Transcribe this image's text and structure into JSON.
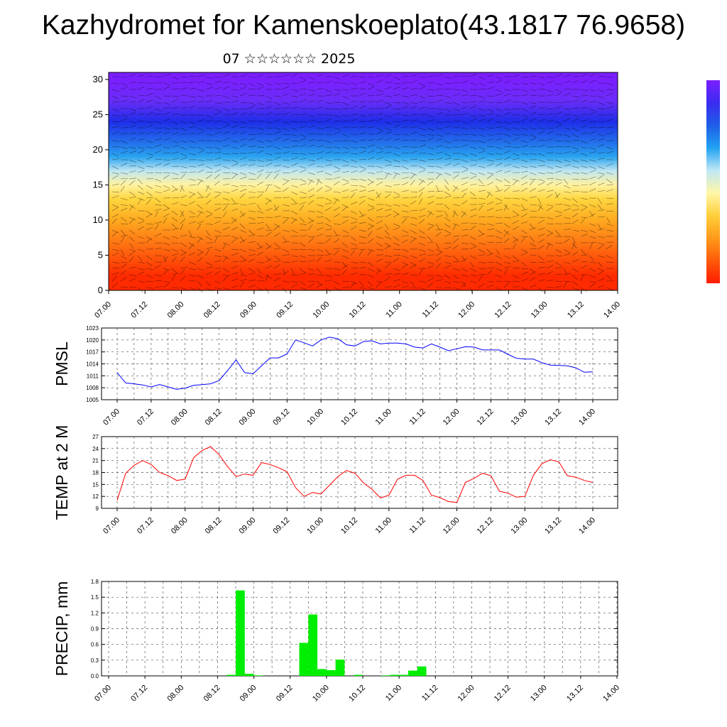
{
  "title": "Kazhydromet for Kamenskoeplato(43.1817 76.9658)",
  "subtitle": "07 ☆☆☆☆☆☆ 2025",
  "chart_data": [
    {
      "type": "heatmap",
      "variable_note": "",
      "x_tick_labels": [
        "07.00",
        "07.12",
        "08.00",
        "08.12",
        "09.00",
        "09.12",
        "10.00",
        "10.12",
        "11.00",
        "11.12",
        "12.00",
        "12.12",
        "13.00",
        "13.12",
        "14.00"
      ],
      "y_tick_labels": [
        "0",
        "5",
        "10",
        "15",
        "20",
        "25",
        "30"
      ],
      "ylim": [
        0,
        31
      ],
      "colormap_top_to_bottom": [
        "#7b1fff",
        "#3a2cf0",
        "#1f5de8",
        "#22a3f2",
        "#bfe8f5",
        "#fff7a8",
        "#ffcf3a",
        "#ff9a1a",
        "#ff5a0a",
        "#ff1c00"
      ],
      "color_bands": [
        {
          "y": 30,
          "color": "#7b1fff"
        },
        {
          "y": 27,
          "color": "#6a2df8"
        },
        {
          "y": 24,
          "color": "#1e2ee8"
        },
        {
          "y": 21,
          "color": "#2270ea"
        },
        {
          "y": 19,
          "color": "#2aa4f0"
        },
        {
          "y": 17,
          "color": "#bfe6f2"
        },
        {
          "y": 15,
          "color": "#fff3a0"
        },
        {
          "y": 13,
          "color": "#ffd640"
        },
        {
          "y": 10,
          "color": "#ffaa20"
        },
        {
          "y": 6,
          "color": "#ff6a10"
        },
        {
          "y": 2,
          "color": "#ff2a00"
        }
      ]
    },
    {
      "type": "line",
      "ylabel": "PMSL",
      "x_tick_labels": [
        "07.00",
        "07.12",
        "08.00",
        "08.12",
        "09.00",
        "09.12",
        "10.00",
        "10.12",
        "11.00",
        "11.12",
        "12.00",
        "12.12",
        "13.00",
        "13.12",
        "14.00"
      ],
      "y_tick_labels": [
        "1005",
        "1008",
        "1011",
        "1014",
        "1017",
        "1020",
        "1023"
      ],
      "ylim": [
        1005,
        1023
      ],
      "color": "#0000ff",
      "x": [
        0,
        3,
        6,
        9,
        12,
        15,
        18,
        21,
        24,
        27,
        30,
        33,
        36,
        39,
        42,
        45,
        48,
        51,
        54,
        57,
        60,
        63,
        66,
        69,
        72,
        75,
        78,
        81,
        84,
        87,
        90,
        93,
        96,
        99,
        102,
        105,
        108,
        111,
        114,
        117,
        120,
        123,
        126,
        129,
        132,
        135,
        138,
        141,
        144,
        147,
        150,
        153,
        156,
        159,
        162,
        165,
        168
      ],
      "values": [
        1011.8,
        1009.2,
        1009.0,
        1008.7,
        1008.2,
        1008.8,
        1008.2,
        1007.6,
        1007.9,
        1008.6,
        1008.8,
        1009.0,
        1009.8,
        1012.3,
        1015.0,
        1011.8,
        1011.5,
        1013.5,
        1015.5,
        1015.5,
        1016.5,
        1020.0,
        1019.3,
        1018.5,
        1020.0,
        1020.7,
        1020.3,
        1018.8,
        1018.5,
        1019.6,
        1019.8,
        1019.0,
        1019.2,
        1019.2,
        1019.0,
        1018.2,
        1018.0,
        1019.0,
        1018.2,
        1017.3,
        1017.8,
        1018.3,
        1018.2,
        1017.5,
        1017.5,
        1017.5,
        1016.4,
        1015.4,
        1015.2,
        1015.2,
        1014.3,
        1013.7,
        1013.6,
        1013.5,
        1013.0,
        1011.9,
        1012.0
      ]
    },
    {
      "type": "line",
      "ylabel": "TEMP at 2 M",
      "x_tick_labels": [
        "07.00",
        "07.12",
        "08.00",
        "08.12",
        "09.00",
        "09.12",
        "10.00",
        "10.12",
        "11.00",
        "11.12",
        "12.00",
        "12.12",
        "13.00",
        "13.12",
        "14.00"
      ],
      "y_tick_labels": [
        "9",
        "12",
        "15",
        "18",
        "21",
        "24",
        "27"
      ],
      "ylim": [
        9,
        27
      ],
      "color": "#ff0000",
      "x": [
        0,
        3,
        6,
        9,
        12,
        15,
        18,
        21,
        24,
        27,
        30,
        33,
        36,
        39,
        42,
        45,
        48,
        51,
        54,
        57,
        60,
        63,
        66,
        69,
        72,
        75,
        78,
        81,
        84,
        87,
        90,
        93,
        96,
        99,
        102,
        105,
        108,
        111,
        114,
        117,
        120,
        123,
        126,
        129,
        132,
        135,
        138,
        141,
        144,
        147,
        150,
        153,
        156,
        159,
        162,
        165,
        168
      ],
      "values": [
        11.0,
        17.8,
        19.8,
        21.0,
        20.0,
        18.0,
        17.2,
        16.0,
        16.3,
        21.7,
        23.5,
        24.5,
        22.5,
        19.5,
        17.0,
        17.6,
        17.3,
        20.5,
        20.0,
        19.2,
        18.2,
        14.2,
        12.0,
        13.0,
        12.6,
        14.8,
        17.0,
        18.5,
        17.8,
        15.4,
        13.8,
        11.6,
        12.3,
        16.3,
        17.3,
        17.3,
        16.0,
        12.3,
        11.7,
        10.7,
        10.5,
        15.5,
        16.5,
        17.8,
        17.2,
        13.3,
        12.8,
        11.8,
        12.0,
        17.3,
        20.2,
        21.2,
        20.7,
        17.2,
        16.8,
        16.0,
        15.5
      ]
    },
    {
      "type": "bar",
      "ylabel": "PRECIP, mm",
      "x_tick_labels": [
        "07.00",
        "07.12",
        "08.00",
        "08.12",
        "09.00",
        "09.12",
        "10.00",
        "10.12",
        "11.00",
        "11.12",
        "12.00",
        "12.12",
        "13.00",
        "13.12",
        "14.00"
      ],
      "y_tick_labels": [
        "0.0",
        "0.3",
        "0.6",
        "0.9",
        "1.2",
        "1.5",
        "1.8"
      ],
      "ylim": [
        0,
        1.8
      ],
      "color": "#00ee00",
      "bar_start_hours": [
        39,
        42,
        45,
        48,
        63,
        66,
        69,
        72,
        75,
        81,
        90,
        93,
        96,
        99,
        102
      ],
      "values": [
        0.02,
        1.63,
        0.04,
        0.01,
        0.63,
        1.17,
        0.13,
        0.11,
        0.31,
        0.02,
        0.01,
        0.02,
        0.02,
        0.1,
        0.18
      ]
    }
  ]
}
